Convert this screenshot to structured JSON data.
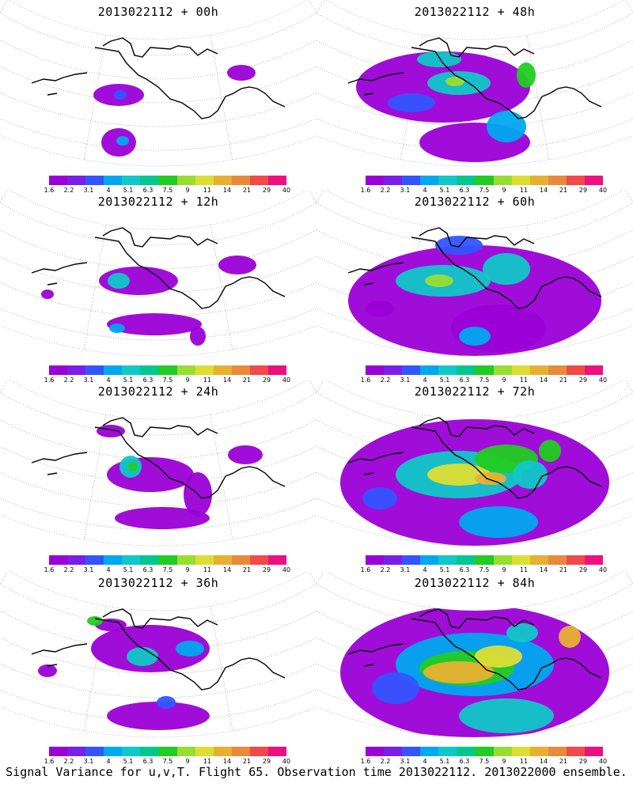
{
  "footer_text": "Signal Variance for u,v,T. Flight 65. Observation time 2013022112. 2013022000 ensemble.",
  "colorbar": {
    "ticks": [
      "1.6",
      "2.2",
      "3.1",
      "4",
      "5.1",
      "6.3",
      "7.5",
      "9",
      "11",
      "14",
      "21",
      "29",
      "40"
    ],
    "colors": [
      "#9b00d6",
      "#7a1fe8",
      "#3355ff",
      "#00a8f0",
      "#10c8c8",
      "#00c890",
      "#22cc22",
      "#99dd33",
      "#dddd33",
      "#e8b030",
      "#e88a3a",
      "#f04a4a",
      "#ee1080"
    ]
  },
  "panels": [
    {
      "title": "2013022112 + 00h",
      "lead": 0
    },
    {
      "title": "2013022112 + 48h",
      "lead": 48
    },
    {
      "title": "2013022112 + 12h",
      "lead": 12
    },
    {
      "title": "2013022112 + 60h",
      "lead": 60
    },
    {
      "title": "2013022112 + 24h",
      "lead": 24
    },
    {
      "title": "2013022112 + 72h",
      "lead": 72
    },
    {
      "title": "2013022112 + 36h",
      "lead": 36
    },
    {
      "title": "2013022112 + 84h",
      "lead": 84
    }
  ]
}
